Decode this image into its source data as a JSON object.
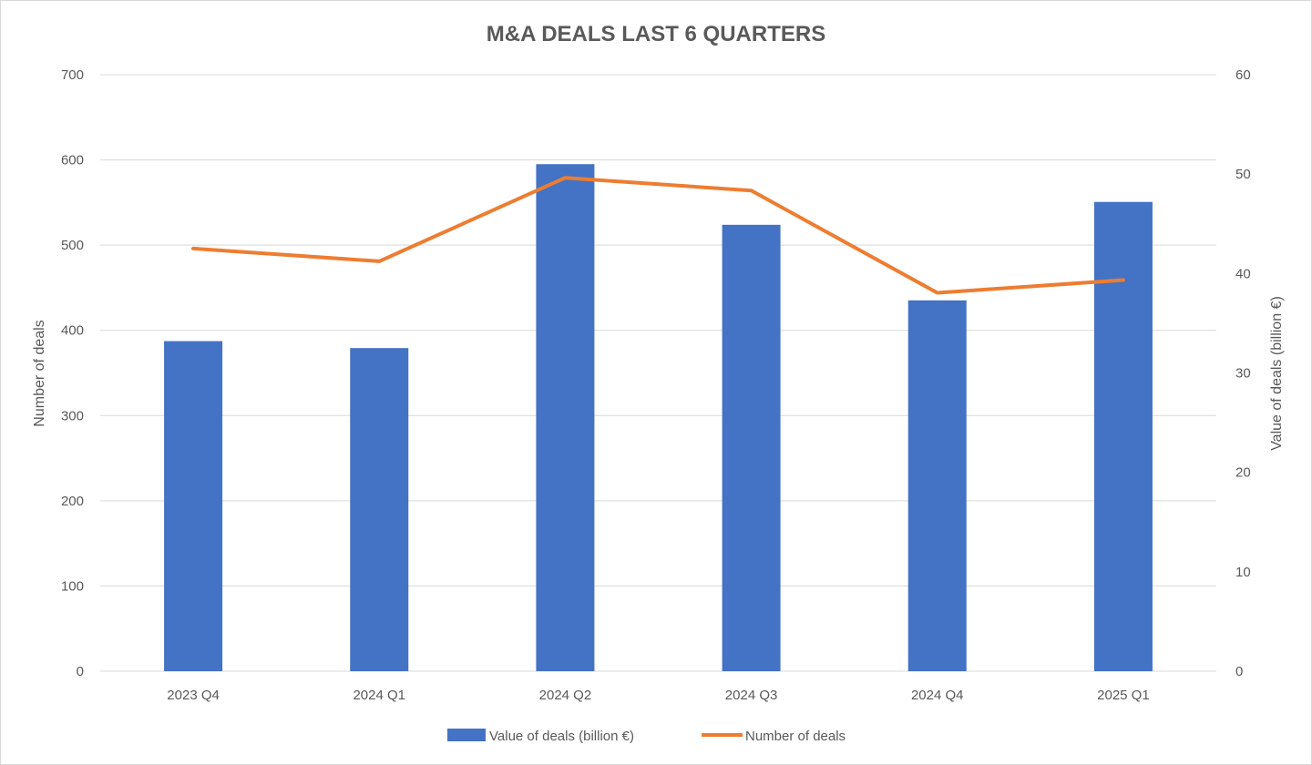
{
  "chart_data": {
    "type": "bar+line",
    "title": "M&A DEALS LAST 6 QUARTERS",
    "categories": [
      "2023 Q4",
      "2024 Q1",
      "2024 Q2",
      "2024 Q3",
      "2024 Q4",
      "2025 Q1"
    ],
    "series": [
      {
        "name": "Value of deals (billion €)",
        "type": "bar",
        "axis": "right",
        "color": "#4472C4",
        "values": [
          33.2,
          32.5,
          51.0,
          44.9,
          37.3,
          47.2
        ]
      },
      {
        "name": "Number of deals",
        "type": "line",
        "axis": "left",
        "color": "#ED7D31",
        "values": [
          496,
          481,
          579,
          564,
          444,
          459
        ]
      }
    ],
    "ylabel_left": "Number of deals",
    "ylabel_right": "Value of deals (billion €)",
    "ylim_left": [
      0,
      700
    ],
    "yticks_left": [
      0,
      100,
      200,
      300,
      400,
      500,
      600,
      700
    ],
    "ylim_right": [
      0,
      60
    ],
    "yticks_right": [
      0,
      10,
      20,
      30,
      40,
      50,
      60
    ],
    "grid": true,
    "legend": "bottom"
  }
}
